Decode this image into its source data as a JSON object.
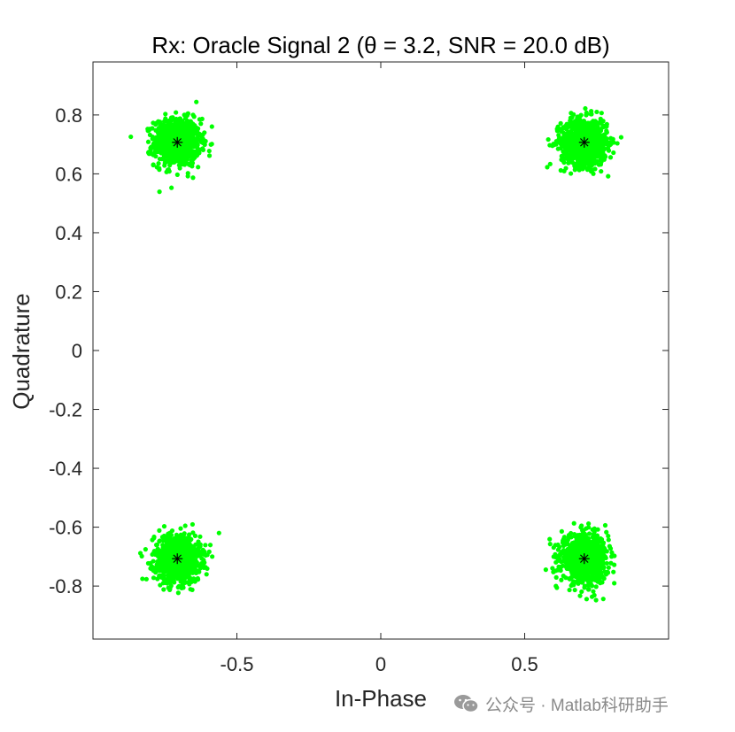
{
  "chart_data": {
    "type": "scatter",
    "title": "Rx: Oracle Signal 2 (θ = 3.2, SNR = 20.0 dB)",
    "xlabel": "In-Phase",
    "ylabel": "Quadrature",
    "xlim": [
      -1,
      1
    ],
    "ylim": [
      -0.98,
      0.98
    ],
    "xticks": [
      -0.5,
      0,
      0.5
    ],
    "xtick_labels": [
      "-0.5",
      "0",
      "0.5"
    ],
    "yticks": [
      -0.8,
      -0.6,
      -0.4,
      -0.2,
      0,
      0.2,
      0.4,
      0.6,
      0.8
    ],
    "ytick_labels": [
      "-0.8",
      "-0.6",
      "-0.4",
      "-0.2",
      "0",
      "0.2",
      "0.4",
      "0.6",
      "0.8"
    ],
    "grid": false,
    "series": [
      {
        "marker": "dot",
        "color": "#00ff00",
        "cluster_centers": [
          [
            -0.707,
            0.707
          ],
          [
            0.707,
            0.707
          ],
          [
            -0.707,
            -0.707
          ],
          [
            0.707,
            -0.707
          ]
        ],
        "cluster_spread_std": 0.04
      },
      {
        "marker": "asterisk",
        "color": "#000000",
        "points": [
          [
            -0.707,
            0.707
          ],
          [
            0.707,
            0.707
          ],
          [
            -0.707,
            -0.707
          ],
          [
            0.707,
            -0.707
          ]
        ]
      }
    ]
  },
  "watermark": {
    "text": "公众号 · Matlab科研助手",
    "icon": "wechat-icon"
  }
}
